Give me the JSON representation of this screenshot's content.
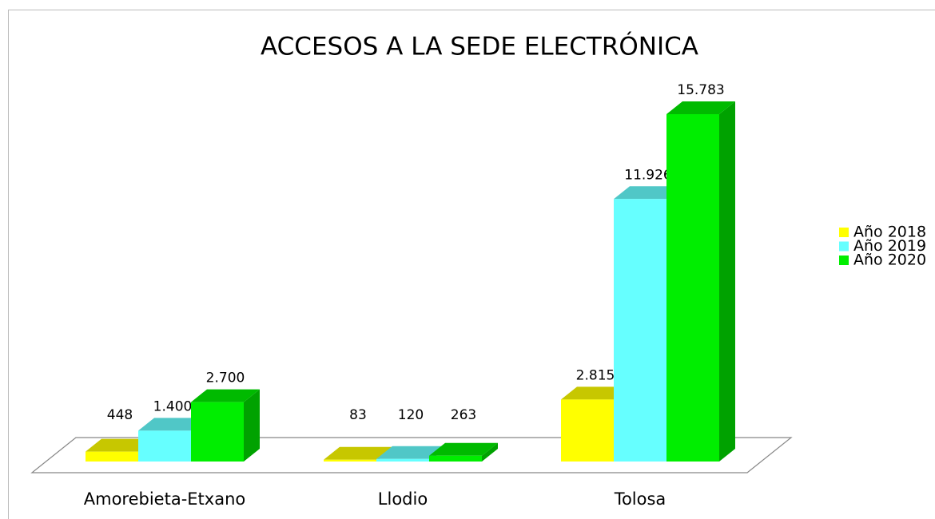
{
  "chart_data": {
    "type": "bar3d",
    "title": "ACCESOS A LA SEDE ELECTRÓNICA",
    "categories": [
      "Amorebieta-Etxano",
      "Llodio",
      "Tolosa"
    ],
    "series": [
      {
        "name": "Año 2018",
        "color": "#ffff00",
        "values": [
          448,
          83,
          2815
        ],
        "value_labels": [
          "448",
          "83",
          "2.815"
        ]
      },
      {
        "name": "Año 2019",
        "color": "#66ffff",
        "values": [
          1400,
          120,
          11926
        ],
        "value_labels": [
          "1.400",
          "120",
          "11.926"
        ]
      },
      {
        "name": "Año 2020",
        "color": "#00ee00",
        "values": [
          2700,
          263,
          15783
        ],
        "value_labels": [
          "2.700",
          "263",
          "15.783"
        ]
      }
    ]
  }
}
